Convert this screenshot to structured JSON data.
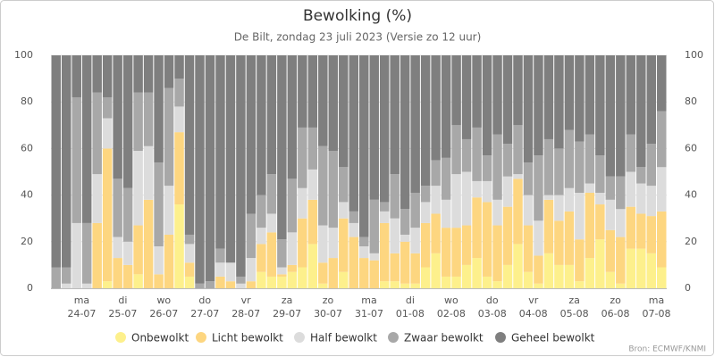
{
  "chart_data": {
    "type": "stacked-bar",
    "title": "Bewolking (%)",
    "subtitle": "De Bilt, zondag 23 juli 2023 (Versie zo 12 uur)",
    "source": "Bron: ECMWF/KNMI",
    "categories": [
      null,
      null,
      null,
      "ma",
      null,
      null,
      null,
      "di",
      null,
      null,
      null,
      "wo",
      null,
      null,
      null,
      "do",
      null,
      null,
      null,
      "vr",
      null,
      null,
      null,
      "za",
      null,
      null,
      null,
      "zo",
      null,
      null,
      null,
      "ma",
      null,
      null,
      null,
      "di",
      null,
      null,
      null,
      "wo",
      null,
      null,
      null,
      "do",
      null,
      null,
      null,
      "vr",
      null,
      null,
      null,
      "za",
      null,
      null,
      null,
      "zo",
      null,
      null,
      null,
      "ma"
    ],
    "category_dates": [
      null,
      null,
      null,
      "24-07",
      null,
      null,
      null,
      "25-07",
      null,
      null,
      null,
      "26-07",
      null,
      null,
      null,
      "27-07",
      null,
      null,
      null,
      "28-07",
      null,
      null,
      null,
      "29-07",
      null,
      null,
      null,
      "30-07",
      null,
      null,
      null,
      "31-07",
      null,
      null,
      null,
      "01-08",
      null,
      null,
      null,
      "02-08",
      null,
      null,
      null,
      "03-08",
      null,
      null,
      null,
      "04-08",
      null,
      null,
      null,
      "05-08",
      null,
      null,
      null,
      "06-08",
      null,
      null,
      null,
      "07-08"
    ],
    "series": [
      {
        "name": "Onbewolkt",
        "color": "#fdf08c",
        "values": [
          0,
          0,
          0,
          0,
          0,
          3,
          0,
          0,
          6,
          0,
          0,
          0,
          36,
          5,
          0,
          0,
          0,
          0,
          0,
          0,
          7,
          5,
          5,
          7,
          9,
          19,
          2,
          0,
          7,
          0,
          0,
          0,
          3,
          3,
          2,
          2,
          9,
          15,
          5,
          5,
          10,
          13,
          5,
          3,
          10,
          19,
          7,
          2,
          15,
          10,
          10,
          3,
          13,
          21,
          7,
          2,
          17,
          17,
          15,
          9
        ]
      },
      {
        "name": "Licht bewolkt",
        "color": "#fdd680",
        "values": [
          0,
          0,
          0,
          0,
          28,
          57,
          13,
          10,
          21,
          38,
          6,
          23,
          31,
          6,
          0,
          0,
          5,
          3,
          0,
          3,
          12,
          19,
          1,
          3,
          21,
          19,
          9,
          13,
          23,
          22,
          13,
          12,
          25,
          12,
          18,
          13,
          19,
          17,
          21,
          21,
          17,
          26,
          32,
          24,
          25,
          28,
          20,
          12,
          23,
          19,
          23,
          18,
          28,
          15,
          18,
          20,
          18,
          15,
          16,
          24
        ]
      },
      {
        "name": "Half bewolkt",
        "color": "#dcdcdc",
        "values": [
          0,
          2,
          28,
          2,
          21,
          13,
          9,
          10,
          32,
          23,
          12,
          21,
          11,
          8,
          0,
          0,
          6,
          8,
          2,
          10,
          7,
          8,
          3,
          14,
          13,
          13,
          16,
          13,
          7,
          6,
          5,
          3,
          5,
          15,
          3,
          11,
          9,
          12,
          12,
          23,
          23,
          7,
          9,
          11,
          13,
          2,
          13,
          15,
          2,
          11,
          10,
          20,
          4,
          5,
          13,
          12,
          15,
          13,
          13,
          19
        ]
      },
      {
        "name": "Zwaar bewolkt",
        "color": "#a8a8a8",
        "values": [
          9,
          7,
          54,
          26,
          35,
          9,
          25,
          23,
          25,
          23,
          36,
          42,
          12,
          4,
          2,
          3,
          6,
          0,
          3,
          19,
          14,
          17,
          12,
          23,
          26,
          18,
          34,
          33,
          15,
          5,
          4,
          23,
          4,
          19,
          11,
          15,
          7,
          11,
          18,
          21,
          14,
          23,
          11,
          28,
          14,
          21,
          14,
          28,
          24,
          20,
          25,
          22,
          21,
          16,
          10,
          14,
          16,
          7,
          18,
          24
        ]
      },
      {
        "name": "Geheel bewolkt",
        "color": "#7f7f7f",
        "values": [
          91,
          91,
          18,
          72,
          16,
          18,
          53,
          57,
          16,
          16,
          46,
          14,
          10,
          77,
          98,
          97,
          83,
          89,
          95,
          68,
          60,
          51,
          79,
          53,
          31,
          31,
          39,
          41,
          48,
          67,
          78,
          62,
          63,
          51,
          66,
          59,
          56,
          45,
          44,
          30,
          36,
          31,
          43,
          34,
          38,
          30,
          46,
          43,
          36,
          40,
          32,
          37,
          34,
          43,
          52,
          52,
          34,
          48,
          38,
          24
        ]
      }
    ],
    "ylim": [
      0,
      100
    ],
    "yticks": [
      0,
      20,
      40,
      60,
      80,
      100
    ],
    "grid": true,
    "legend": "bottom"
  }
}
